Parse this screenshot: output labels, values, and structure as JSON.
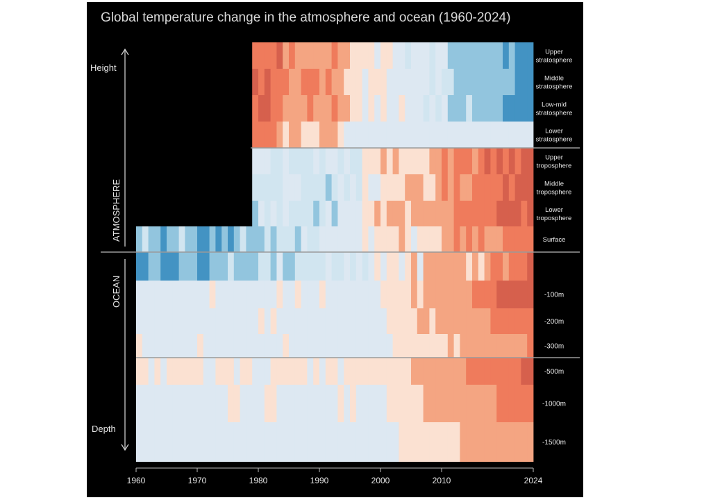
{
  "chart_data": {
    "type": "heatmap",
    "title": "Global temperature change in the atmosphere and ocean (1960-2024)",
    "x_range": [
      1960,
      2024
    ],
    "x_ticks": [
      "1960",
      "1970",
      "1980",
      "1990",
      "2000",
      "2010",
      "2024"
    ],
    "side_labels": {
      "height": "Height",
      "atmosphere": "ATMOSPHERE",
      "ocean": "OCEAN",
      "depth": "Depth"
    },
    "rows": [
      {
        "label": [
          "Upper",
          "stratosphere"
        ],
        "start_year": 1979,
        "section": "atmosphere"
      },
      {
        "label": [
          "Middle",
          "stratosphere"
        ],
        "start_year": 1979,
        "section": "atmosphere"
      },
      {
        "label": [
          "Low-mid",
          "stratosphere"
        ],
        "start_year": 1979,
        "section": "atmosphere"
      },
      {
        "label": [
          "Lower",
          "stratosphere"
        ],
        "start_year": 1979,
        "section": "atmosphere"
      },
      {
        "label": [
          "Upper",
          "troposphere"
        ],
        "start_year": 1979,
        "section": "atmosphere"
      },
      {
        "label": [
          "Middle",
          "troposphere"
        ],
        "start_year": 1979,
        "section": "atmosphere"
      },
      {
        "label": [
          "Lower",
          "troposphere"
        ],
        "start_year": 1979,
        "section": "atmosphere"
      },
      {
        "label": [
          "Surface"
        ],
        "start_year": 1960,
        "section": "atmosphere"
      },
      {
        "label": [
          ""
        ],
        "start_year": 1960,
        "section": "ocean"
      },
      {
        "label": [
          "-100m"
        ],
        "start_year": 1960,
        "section": "ocean"
      },
      {
        "label": [
          "-200m"
        ],
        "start_year": 1960,
        "section": "ocean"
      },
      {
        "label": [
          "-300m"
        ],
        "start_year": 1960,
        "section": "ocean"
      },
      {
        "label": [
          "-500m"
        ],
        "start_year": 1960,
        "section": "ocean"
      },
      {
        "label": [
          "-1000m"
        ],
        "start_year": 1960,
        "section": "ocean"
      },
      {
        "label": [
          "-1500m"
        ],
        "start_year": 1960,
        "section": "ocean"
      }
    ],
    "colors": {
      "background": "#000000",
      "title": "#d8d8d8",
      "divider": "#9a9a9a",
      "label": "#e8e8e8",
      "scale": [
        "#08306b",
        "#2166ac",
        "#4393c3",
        "#92c5de",
        "#d1e5f0",
        "#dde8f2",
        "#fbe1d2",
        "#f4a582",
        "#ef7b5c",
        "#d6604d",
        "#b2182b",
        "#67000d"
      ]
    },
    "anomaly_pattern": "approximate: cooling (blue) in stratosphere over time, warming (red) in troposphere, surface and ocean over time"
  }
}
